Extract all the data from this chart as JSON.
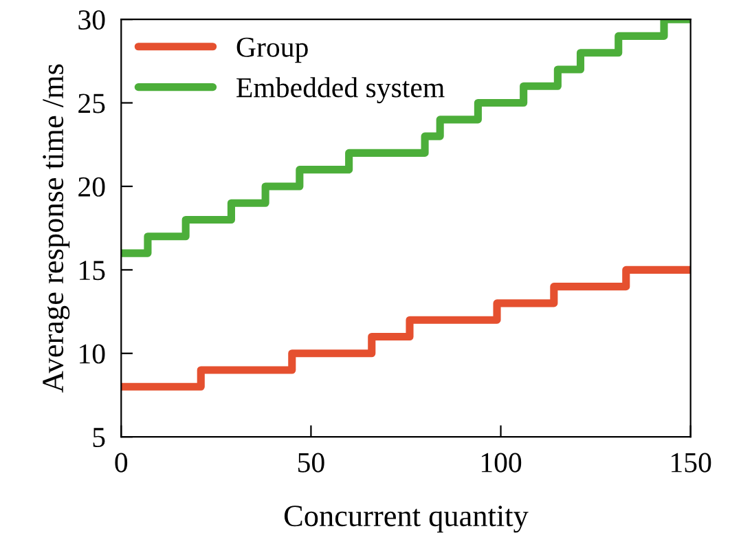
{
  "chart_data": {
    "type": "step",
    "xlabel": "Concurrent quantity",
    "ylabel": "Average response time /ms",
    "xlim": [
      0,
      150
    ],
    "ylim": [
      5,
      30
    ],
    "xticks": [
      0,
      50,
      100,
      150
    ],
    "yticks": [
      5,
      10,
      15,
      20,
      25,
      30
    ],
    "grid": false,
    "legend": "top left",
    "marker": "none",
    "line_style": "solid",
    "series": [
      {
        "name": "Group",
        "color": "#e5502f",
        "x": [
          0,
          21,
          45,
          66,
          76,
          99,
          114,
          133,
          150
        ],
        "values": [
          8,
          9,
          10,
          11,
          12,
          13,
          14,
          15,
          15
        ]
      },
      {
        "name": "Embedded system",
        "color": "#4cae3a",
        "x": [
          0,
          7,
          17,
          29,
          38,
          47,
          60,
          80,
          84,
          94,
          106,
          115,
          121,
          131,
          143,
          150
        ],
        "values": [
          16,
          17,
          18,
          19,
          20,
          21,
          22,
          23,
          24,
          25,
          26,
          27,
          28,
          29,
          30,
          30
        ]
      }
    ]
  }
}
